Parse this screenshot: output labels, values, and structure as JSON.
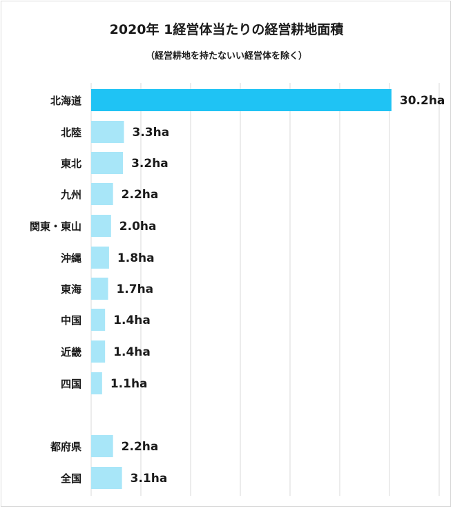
{
  "chart_data": {
    "type": "bar",
    "orientation": "horizontal",
    "title": "2020年 1経営体当たりの経営耕地面積",
    "subtitle": "（経営耕地を持たないい経営体を除く）",
    "unit": "ha",
    "xlim": [
      0,
      35
    ],
    "grid": true,
    "categories": [
      "北海道",
      "北陸",
      "東北",
      "九州",
      "関東・東山",
      "沖縄",
      "東海",
      "中国",
      "近畿",
      "四国",
      "都府県",
      "全国"
    ],
    "values": [
      30.2,
      3.3,
      3.2,
      2.2,
      2.0,
      1.8,
      1.7,
      1.4,
      1.4,
      1.1,
      2.2,
      3.1
    ],
    "value_labels": [
      "30.2ha",
      "3.3ha",
      "3.2ha",
      "2.2ha",
      "2.0ha",
      "1.8ha",
      "1.7ha",
      "1.4ha",
      "1.4ha",
      "1.1ha",
      "2.2ha",
      "3.1ha"
    ],
    "colors": {
      "highlight": "#1fc3f4",
      "bar": "#a8e6f8",
      "grid": "#d9d9d9"
    }
  }
}
